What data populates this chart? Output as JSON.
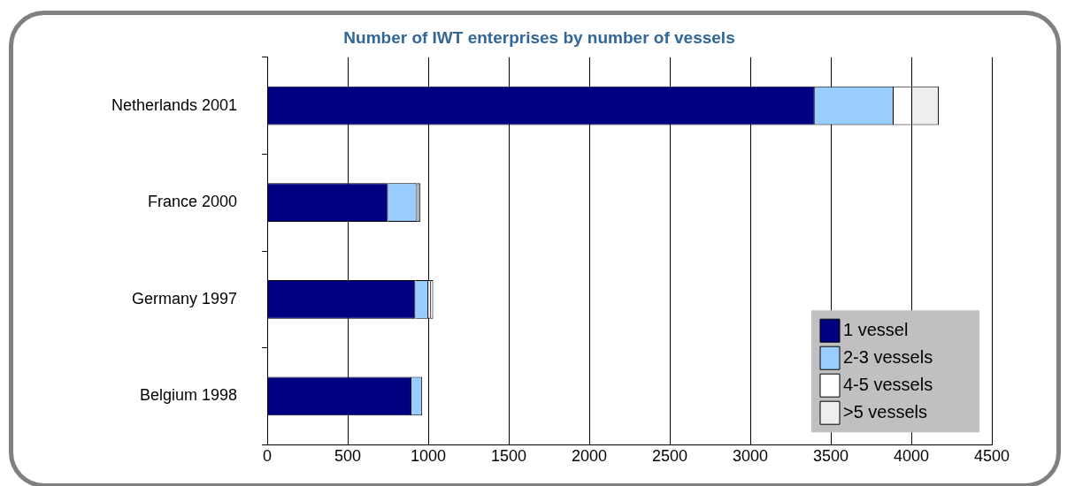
{
  "chart_data": {
    "type": "bar",
    "orientation": "horizontal",
    "stacked": true,
    "title": "Number of IWT enterprises by number of vessels",
    "categories": [
      "Netherlands 2001",
      "France 2000",
      "Germany 1997",
      "Belgium 1998"
    ],
    "series": [
      {
        "name": "1 vessel",
        "color": "#000080",
        "values": [
          3400,
          750,
          920,
          895
        ]
      },
      {
        "name": "2-3 vessels",
        "color": "#99ccff",
        "values": [
          490,
          180,
          80,
          67
        ]
      },
      {
        "name": "4-5 vessels",
        "color": "#ffffff",
        "values": [
          115,
          10,
          15,
          null
        ]
      },
      {
        "name": ">5 vessels",
        "color": "#eeeeee",
        "values": [
          165,
          10,
          15,
          null
        ]
      }
    ],
    "xlim": [
      0,
      4500
    ],
    "xticks": [
      0,
      500,
      1000,
      1500,
      2000,
      2500,
      3000,
      3500,
      4000,
      4500
    ],
    "grid": "x",
    "legend": "bottom right"
  }
}
